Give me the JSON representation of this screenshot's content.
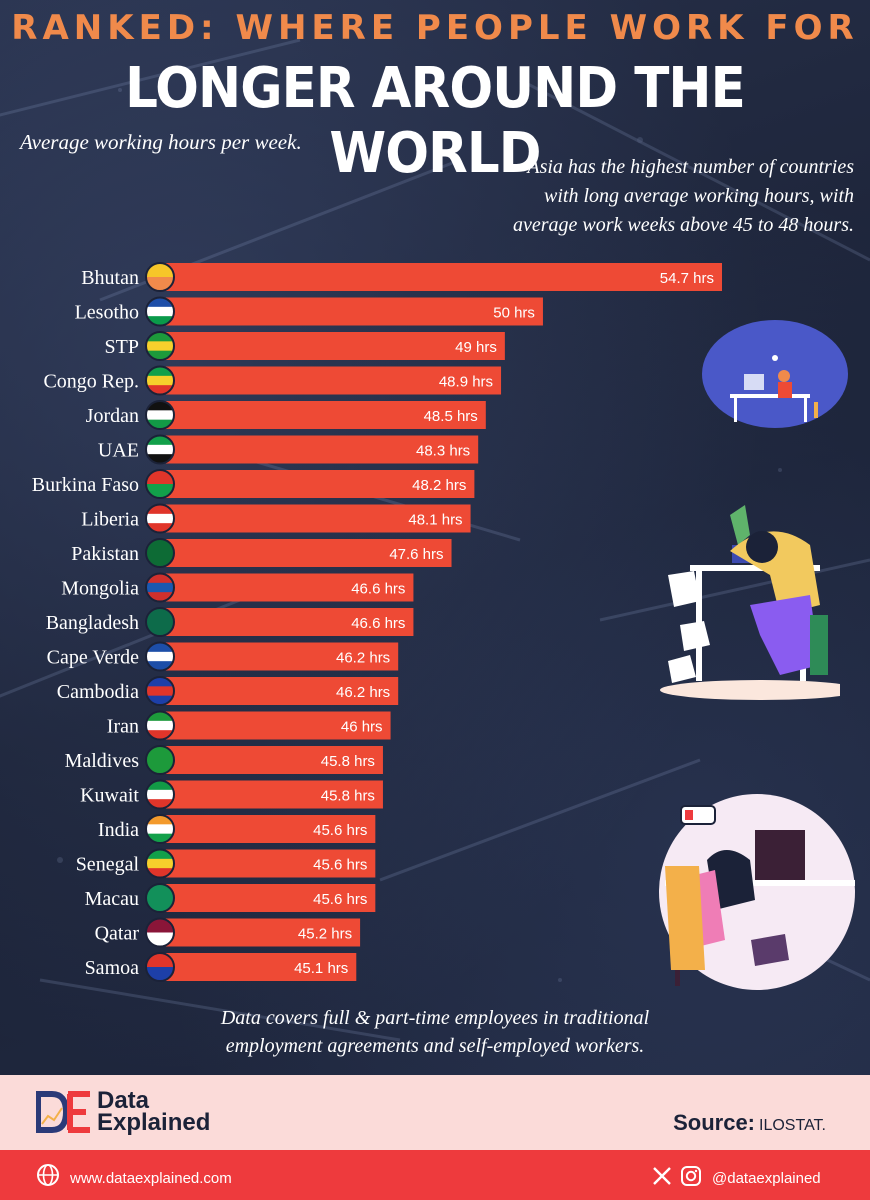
{
  "header": {
    "kicker": "RANKED: WHERE PEOPLE WORK FOR",
    "title": "LONGER AROUND THE WORLD",
    "subtitle": "Average working hours per week.",
    "note_lines": [
      "Asia has the highest number of countries",
      "with long average working hours, with",
      "average work weeks above 45 to 48 hours."
    ]
  },
  "chart_data": {
    "type": "bar",
    "orientation": "horizontal",
    "categories": [
      "Bhutan",
      "Lesotho",
      "STP",
      "Congo Rep.",
      "Jordan",
      "UAE",
      "Burkina Faso",
      "Liberia",
      "Pakistan",
      "Mongolia",
      "Bangladesh",
      "Cape Verde",
      "Cambodia",
      "Iran",
      "Maldives",
      "Kuwait",
      "India",
      "Senegal",
      "Macau",
      "Qatar",
      "Samoa"
    ],
    "values": [
      54.7,
      50,
      49,
      48.9,
      48.5,
      48.3,
      48.2,
      48.1,
      47.6,
      46.6,
      46.6,
      46.2,
      46.2,
      46,
      45.8,
      45.8,
      45.6,
      45.6,
      45.6,
      45.2,
      45.1
    ],
    "value_labels": [
      "54.7 hrs",
      "50 hrs",
      "49 hrs",
      "48.9 hrs",
      "48.5 hrs",
      "48.3 hrs",
      "48.2 hrs",
      "48.1 hrs",
      "47.6 hrs",
      "46.6 hrs",
      "46.6 hrs",
      "46.2 hrs",
      "46.2 hrs",
      "46 hrs",
      "45.8 hrs",
      "45.8 hrs",
      "45.6 hrs",
      "45.6 hrs",
      "45.6 hrs",
      "45.2 hrs",
      "45.1 hrs"
    ],
    "flag_icons": [
      "flag-bhutan-icon",
      "flag-lesotho-icon",
      "flag-stp-icon",
      "flag-congo-rep-icon",
      "flag-jordan-icon",
      "flag-uae-icon",
      "flag-burkina-faso-icon",
      "flag-liberia-icon",
      "flag-pakistan-icon",
      "flag-mongolia-icon",
      "flag-bangladesh-icon",
      "flag-cape-verde-icon",
      "flag-cambodia-icon",
      "flag-iran-icon",
      "flag-maldives-icon",
      "flag-kuwait-icon",
      "flag-india-icon",
      "flag-senegal-icon",
      "flag-macau-icon",
      "flag-qatar-icon",
      "flag-samoa-icon"
    ],
    "bar_color": "#ee4a35",
    "value_label_color": "#ffffff",
    "category_label_color": "#ffffff"
  },
  "footnote_lines": [
    "Data covers full & part-time employees in traditional",
    "employment agreements and self-employed workers."
  ],
  "footer": {
    "brand_line1": "Data",
    "brand_line2": "Explained",
    "source_label": "Source:",
    "source_value": "ILOSTAT.",
    "website": "www.dataexplained.com",
    "handle": "@dataexplained"
  },
  "colors": {
    "background": "#1f2740",
    "kicker": "#f08a4b",
    "footer_light": "#fbdbd9",
    "footer_red": "#ee3a3d",
    "brand_text": "#1b2238"
  },
  "icons": [
    "globe-icon",
    "x-logo-icon",
    "instagram-icon",
    "data-explained-logo-icon"
  ]
}
